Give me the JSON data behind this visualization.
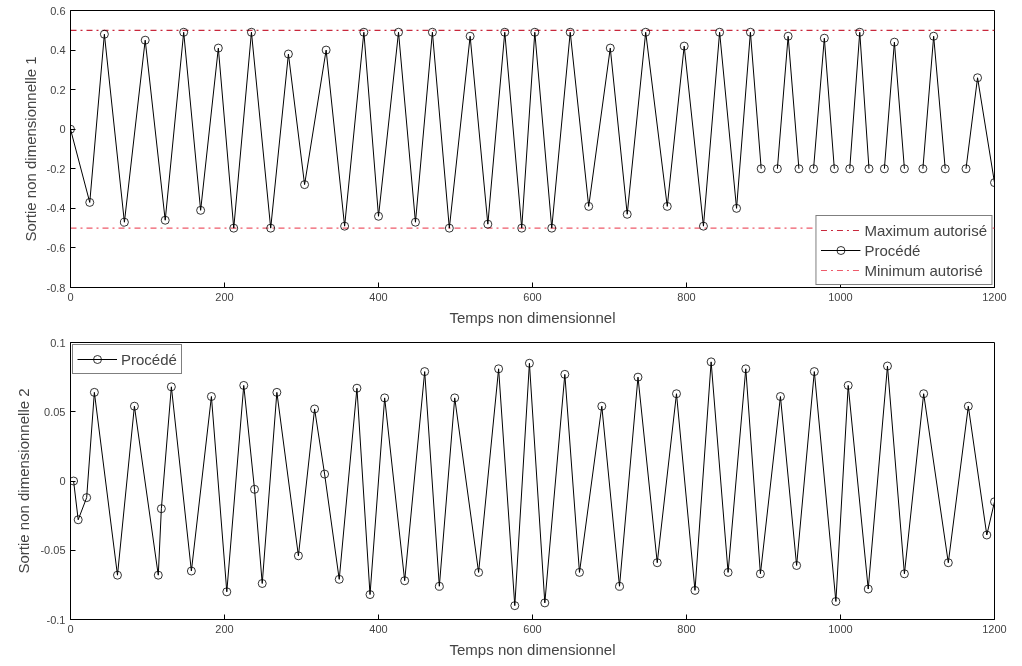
{
  "chart_data": [
    {
      "type": "line",
      "xlabel": "Temps non dimensionnel",
      "ylabel": "Sortie non dimensionnelle 1",
      "xlim": [
        0,
        1200
      ],
      "ylim": [
        -0.8,
        0.6
      ],
      "xticks": [
        0,
        200,
        400,
        600,
        800,
        1000,
        1200
      ],
      "yticks": [
        -0.8,
        -0.6,
        -0.4,
        -0.2,
        0,
        0.2,
        0.4,
        0.6
      ],
      "grid": false,
      "legend": "bottom right",
      "marker": "circle",
      "line_style": "solid",
      "ref_lines": [
        {
          "axis": "y",
          "value": 0.5,
          "label": "Maximum autorisé",
          "color": "#c8283c",
          "line_style": "dashdot"
        },
        {
          "axis": "y",
          "value": -0.5,
          "label": "Minimum autorisé",
          "color": "#ee5a6a",
          "line_style": "dashdot"
        }
      ],
      "series": [
        {
          "name": "Procédé",
          "color": "#000000",
          "x": [
            0,
            25,
            44,
            70,
            97,
            123,
            147,
            169,
            192,
            212,
            235,
            260,
            283,
            304,
            332,
            356,
            381,
            400,
            426,
            448,
            470,
            492,
            519,
            542,
            564,
            586,
            603,
            625,
            649,
            673,
            701,
            723,
            747,
            775,
            797,
            822,
            843,
            865,
            883,
            897,
            907,
            918,
            932,
            946,
            955,
            965,
            979,
            992,
            1002,
            1012,
            1025,
            1037,
            1047,
            1057,
            1070,
            1083,
            1095,
            1107,
            1121,
            1136,
            1150,
            1163,
            1178,
            1200
          ],
          "values": [
            0.0,
            -0.37,
            0.48,
            -0.47,
            0.45,
            -0.46,
            0.49,
            -0.41,
            0.41,
            -0.5,
            0.49,
            -0.5,
            0.38,
            -0.28,
            0.4,
            -0.49,
            0.49,
            -0.44,
            0.49,
            -0.47,
            0.49,
            -0.5,
            0.47,
            -0.48,
            0.49,
            -0.5,
            0.49,
            -0.5,
            0.49,
            -0.39,
            0.41,
            -0.43,
            0.49,
            -0.39,
            0.42,
            -0.49,
            0.49,
            -0.4,
            0.49,
            -0.2,
            null,
            -0.2,
            0.47,
            -0.2,
            null,
            -0.2,
            0.46,
            -0.2,
            null,
            -0.2,
            0.49,
            -0.2,
            null,
            -0.2,
            0.44,
            -0.2,
            null,
            -0.2,
            0.47,
            -0.2,
            null,
            -0.2,
            0.26,
            -0.27
          ]
        }
      ]
    },
    {
      "type": "line",
      "xlabel": "Temps non dimensionnel",
      "ylabel": "Sortie non dimensionnelle 2",
      "xlim": [
        0,
        1200
      ],
      "ylim": [
        -0.1,
        0.1
      ],
      "xticks": [
        0,
        200,
        400,
        600,
        800,
        1000,
        1200
      ],
      "yticks": [
        -0.1,
        -0.05,
        0,
        0.05,
        0.1
      ],
      "grid": false,
      "legend": "top left",
      "marker": "circle",
      "line_style": "solid",
      "series": [
        {
          "name": "Procédé",
          "color": "#000000",
          "x": [
            4,
            10,
            21,
            31,
            61,
            83,
            114,
            118,
            131,
            157,
            183,
            203,
            225,
            239,
            249,
            268,
            296,
            317,
            330,
            349,
            372,
            389,
            408,
            434,
            460,
            479,
            499,
            530,
            556,
            577,
            596,
            616,
            642,
            661,
            690,
            713,
            737,
            762,
            787,
            811,
            832,
            854,
            877,
            896,
            922,
            943,
            966,
            994,
            1010,
            1036,
            1061,
            1083,
            1108,
            1140,
            1166,
            1190,
            1200
          ],
          "values": [
            0.0,
            -0.028,
            -0.012,
            0.064,
            -0.068,
            0.054,
            -0.068,
            -0.02,
            0.068,
            -0.065,
            0.061,
            -0.08,
            0.069,
            -0.006,
            -0.074,
            0.064,
            -0.054,
            0.052,
            0.005,
            -0.071,
            0.067,
            -0.082,
            0.06,
            -0.072,
            0.079,
            -0.076,
            0.06,
            -0.066,
            0.081,
            -0.09,
            0.085,
            -0.088,
            0.077,
            -0.066,
            0.054,
            -0.076,
            0.075,
            -0.059,
            0.063,
            -0.079,
            0.086,
            -0.066,
            0.081,
            -0.067,
            0.061,
            -0.061,
            0.079,
            -0.087,
            0.069,
            -0.078,
            0.083,
            -0.067,
            0.063,
            -0.059,
            0.054,
            -0.039,
            -0.015
          ]
        }
      ]
    }
  ]
}
